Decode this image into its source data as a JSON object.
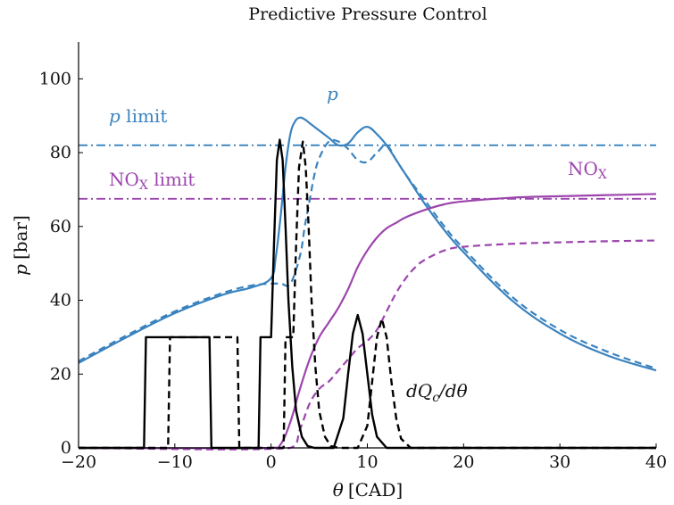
{
  "chart_data": {
    "type": "line",
    "title": "Predictive Pressure Control",
    "xlabel": {
      "var": "θ",
      "unit": "[CAD]"
    },
    "ylabel": {
      "var": "p",
      "unit": "[bar]"
    },
    "xlim": [
      -20,
      40
    ],
    "ylim": [
      0,
      110
    ],
    "xticks": [
      -20,
      -10,
      0,
      10,
      20,
      30,
      40
    ],
    "yticks": [
      0,
      20,
      40,
      60,
      80,
      100
    ],
    "xtick_labels": [
      "−20",
      "−10",
      "0",
      "10",
      "20",
      "30",
      "40"
    ],
    "ytick_labels": [
      "0",
      "20",
      "40",
      "60",
      "80",
      "100"
    ],
    "grid": false,
    "colors": {
      "pressure": "#3a83bf",
      "nox": "#9c45ad",
      "heat": "#000000"
    },
    "limits": [
      {
        "name": "p limit",
        "y": 82,
        "color": "#3a83bf",
        "style": "dashdot"
      },
      {
        "name": "NOx limit",
        "y": 67.5,
        "color": "#9c45ad",
        "style": "dashdot"
      }
    ],
    "annotations": {
      "p_limit": {
        "var": "p",
        "text": " limit"
      },
      "nox_limit": {
        "base": "NO",
        "sub": "X",
        "text": " limit"
      },
      "p_curve": {
        "var": "p"
      },
      "nox_curve": {
        "base": "NO",
        "sub": "X"
      },
      "heat_release": {
        "text": "dQ",
        "sub": "c",
        "tail": "/dθ"
      }
    },
    "series": [
      {
        "group": "pressure",
        "style": "solid",
        "color": "#3a83bf",
        "x": [
          -20,
          -15,
          -10,
          -5,
          -2,
          0,
          0.5,
          1,
          1.5,
          2,
          2.5,
          3,
          3.5,
          4,
          5,
          6,
          7,
          8,
          9,
          10,
          11,
          12,
          13,
          14,
          16,
          18,
          20,
          25,
          30,
          35,
          40
        ],
        "y": [
          23,
          30,
          36.5,
          41.5,
          43.5,
          46,
          52,
          63,
          76,
          85,
          88.5,
          89.5,
          89,
          88,
          86,
          84,
          82,
          82.5,
          85.5,
          87,
          85,
          82,
          78,
          74,
          66,
          59,
          53,
          40,
          31,
          25,
          21
        ]
      },
      {
        "group": "pressure",
        "style": "dashed",
        "color": "#3a83bf",
        "x": [
          -20,
          -15,
          -10,
          -5,
          -2,
          0,
          1,
          2,
          3,
          3.5,
          4,
          4.5,
          5,
          6,
          7,
          8,
          9,
          10,
          11,
          12,
          13,
          14,
          16,
          18,
          20,
          25,
          30,
          35,
          40
        ],
        "y": [
          23.5,
          30.5,
          37,
          42,
          44,
          44.5,
          44.5,
          44.5,
          52,
          60,
          67,
          74,
          78.5,
          83,
          83,
          81,
          78,
          77.5,
          80,
          82,
          78,
          74,
          67,
          60,
          54,
          41,
          32,
          26,
          21.5
        ]
      },
      {
        "group": "nox",
        "style": "solid",
        "color": "#9c45ad",
        "x": [
          -20,
          0,
          1,
          2,
          3,
          4,
          5,
          6,
          7,
          8,
          9,
          10,
          11,
          12,
          13,
          14,
          16,
          18,
          20,
          25,
          30,
          35,
          40
        ],
        "y": [
          0,
          0,
          1,
          7,
          16,
          24,
          30,
          34,
          38,
          43,
          49,
          53.5,
          57,
          59.5,
          61,
          62.5,
          64.5,
          66,
          66.8,
          67.8,
          68.2,
          68.5,
          68.8
        ]
      },
      {
        "group": "nox",
        "style": "dashed",
        "color": "#9c45ad",
        "x": [
          -20,
          2,
          3,
          4,
          5,
          6,
          7,
          8,
          9,
          10,
          11,
          12,
          13,
          14,
          15,
          16,
          18,
          20,
          25,
          30,
          35,
          40
        ],
        "y": [
          0,
          0,
          5,
          12,
          16,
          18,
          21,
          24,
          27,
          29,
          32,
          37,
          42,
          46,
          49,
          51,
          53.5,
          54.5,
          55.3,
          55.7,
          56,
          56.2
        ]
      },
      {
        "group": "heat",
        "style": "solid",
        "color": "#000000",
        "x": [
          -20,
          -13.2,
          -13,
          -6.4,
          -6.2,
          -1.3,
          -1.1,
          0,
          0.3,
          0.6,
          0.9,
          1.2,
          1.5,
          1.8,
          2.2,
          2.6,
          3.2,
          3.8,
          4.5,
          6.5,
          7.5,
          8,
          8.5,
          9,
          9.5,
          10,
          10.5,
          11,
          12,
          40
        ],
        "y": [
          0,
          0,
          30,
          30,
          0,
          0,
          30,
          30,
          55,
          78,
          83.5,
          78,
          60,
          40,
          22,
          10,
          3,
          0.5,
          0,
          0,
          8,
          20,
          31,
          36,
          31,
          20,
          9,
          3,
          0,
          0
        ]
      },
      {
        "group": "heat",
        "style": "dashed",
        "color": "#000000",
        "x": [
          -20,
          -10.7,
          -10.5,
          -3.5,
          -3.3,
          1.3,
          1.5,
          2.3,
          2.6,
          2.9,
          3.3,
          3.6,
          3.9,
          4.2,
          4.6,
          5,
          5.6,
          6.2,
          7,
          9,
          10,
          10.5,
          11,
          11.5,
          12,
          12.5,
          13,
          13.5,
          14.5,
          40
        ],
        "y": [
          0,
          0,
          30,
          30,
          0,
          0,
          30,
          30,
          55,
          76,
          83,
          76,
          60,
          40,
          22,
          10,
          3,
          0.5,
          0,
          0,
          6,
          18,
          30,
          35,
          30,
          18,
          8,
          2.5,
          0,
          0
        ]
      }
    ]
  }
}
